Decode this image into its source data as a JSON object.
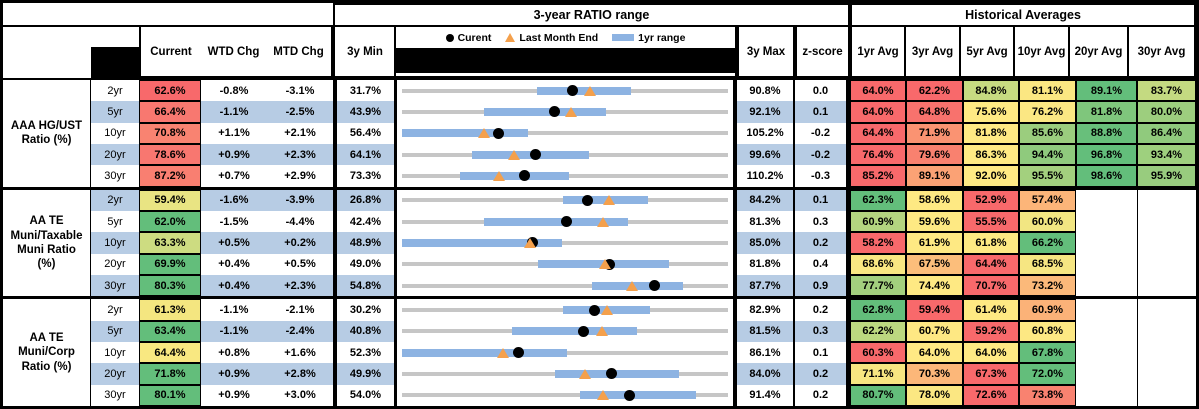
{
  "titles": {
    "mid": "3-year RATIO range",
    "right": "Historical Averages"
  },
  "legend": {
    "current": "Curent",
    "last_month": "Last Month End",
    "range": "1yr range"
  },
  "headers": {
    "current": "Current",
    "wtd": "WTD Chg",
    "mtd": "MTD Chg",
    "min": "3y Min",
    "max": "3y Max",
    "zscore": "z-score",
    "avgs": [
      "1yr Avg",
      "3yr Avg",
      "5yr Avg",
      "10yr Avg",
      "20yr Avg",
      "30yr Avg"
    ]
  },
  "colors": {
    "band": "#B7CCE4",
    "bar_1yr": "#8DB3E2",
    "line_3yr": "#C6C6C6",
    "triangle": "#F4A04C",
    "dot": "#000000",
    "scale_red": "#F8696B",
    "scale_yellow": "#FFEB84",
    "scale_green": "#63BE7B"
  },
  "groups": [
    {
      "label": "AAA HG/UST\nRatio (%)",
      "rows": [
        {
          "tenor": "2yr",
          "current": "62.6%",
          "current_bg": "#F8696B",
          "wtd": "-0.8%",
          "mtd": "-3.1%",
          "min": "31.7%",
          "max": "90.8%",
          "z": "0.0",
          "chart": {
            "min": 31.7,
            "max": 90.8,
            "lo": 56.2,
            "hi": 73.3,
            "cur": 62.6,
            "lme": 65.7
          },
          "avgs": [
            {
              "v": "64.0%",
              "bg": "#F8696B"
            },
            {
              "v": "62.2%",
              "bg": "#F8696B"
            },
            {
              "v": "84.8%",
              "bg": "#C7DB81"
            },
            {
              "v": "81.1%",
              "bg": "#FBE782"
            },
            {
              "v": "89.1%",
              "bg": "#63BE7B"
            },
            {
              "v": "83.7%",
              "bg": "#C4DA81"
            }
          ]
        },
        {
          "tenor": "5yr",
          "current": "66.4%",
          "current_bg": "#F87870",
          "wtd": "-1.1%",
          "mtd": "-2.5%",
          "min": "43.9%",
          "max": "92.1%",
          "z": "0.1",
          "chart": {
            "min": 43.9,
            "max": 92.1,
            "lo": 56.0,
            "hi": 74.1,
            "cur": 66.4,
            "lme": 68.9
          },
          "avgs": [
            {
              "v": "64.0%",
              "bg": "#F8696B"
            },
            {
              "v": "64.8%",
              "bg": "#F8726D"
            },
            {
              "v": "75.6%",
              "bg": "#FFEA84"
            },
            {
              "v": "76.2%",
              "bg": "#FBE783"
            },
            {
              "v": "81.8%",
              "bg": "#7FC67C"
            },
            {
              "v": "80.0%",
              "bg": "#9DCE7E"
            }
          ]
        },
        {
          "tenor": "10yr",
          "current": "70.8%",
          "current_bg": "#F98371",
          "wtd": "+1.1%",
          "mtd": "+2.1%",
          "min": "56.4%",
          "max": "105.2%",
          "z": "-0.2",
          "chart": {
            "min": 56.4,
            "max": 105.2,
            "lo": 56.4,
            "hi": 75.3,
            "cur": 70.8,
            "lme": 68.7
          },
          "avgs": [
            {
              "v": "64.4%",
              "bg": "#F8696B"
            },
            {
              "v": "71.9%",
              "bg": "#FA9372"
            },
            {
              "v": "81.8%",
              "bg": "#FFEA84"
            },
            {
              "v": "85.6%",
              "bg": "#9BCD7E"
            },
            {
              "v": "88.8%",
              "bg": "#68BF7B"
            },
            {
              "v": "86.4%",
              "bg": "#90CA7D"
            }
          ]
        },
        {
          "tenor": "20yr",
          "current": "78.6%",
          "current_bg": "#F87770",
          "wtd": "+0.9%",
          "mtd": "+2.3%",
          "min": "64.1%",
          "max": "99.6%",
          "z": "-0.2",
          "chart": {
            "min": 64.1,
            "max": 99.6,
            "lo": 71.7,
            "hi": 84.5,
            "cur": 78.6,
            "lme": 76.3
          },
          "avgs": [
            {
              "v": "76.4%",
              "bg": "#F8696B"
            },
            {
              "v": "79.6%",
              "bg": "#F9816F"
            },
            {
              "v": "86.3%",
              "bg": "#FFEA84"
            },
            {
              "v": "94.4%",
              "bg": "#8FCA7D"
            },
            {
              "v": "96.8%",
              "bg": "#63BE7B"
            },
            {
              "v": "93.4%",
              "bg": "#9ED07E"
            }
          ]
        },
        {
          "tenor": "30yr",
          "current": "87.2%",
          "current_bg": "#F97F71",
          "wtd": "+0.7%",
          "mtd": "+2.9%",
          "min": "73.3%",
          "max": "110.2%",
          "z": "-0.3",
          "chart": {
            "min": 73.3,
            "max": 110.2,
            "lo": 79.9,
            "hi": 92.2,
            "cur": 87.2,
            "lme": 84.3
          },
          "avgs": [
            {
              "v": "85.2%",
              "bg": "#F8696B"
            },
            {
              "v": "89.1%",
              "bg": "#FBA275"
            },
            {
              "v": "92.0%",
              "bg": "#FFEA84"
            },
            {
              "v": "95.5%",
              "bg": "#A3D07E"
            },
            {
              "v": "98.6%",
              "bg": "#63BE7B"
            },
            {
              "v": "95.9%",
              "bg": "#98CC7E"
            }
          ]
        }
      ]
    },
    {
      "label": "AA TE\nMuni/Taxable\nMuni Ratio\n(%)",
      "rows": [
        {
          "tenor": "2yr",
          "current": "59.4%",
          "current_bg": "#E9E483",
          "wtd": "-1.6%",
          "mtd": "-3.9%",
          "min": "26.8%",
          "max": "84.2%",
          "z": "0.1",
          "chart": {
            "min": 26.8,
            "max": 84.2,
            "lo": 55.1,
            "hi": 70.2,
            "cur": 59.4,
            "lme": 63.3
          },
          "avgs": [
            {
              "v": "62.3%",
              "bg": "#63BE7B"
            },
            {
              "v": "58.6%",
              "bg": "#FEE983"
            },
            {
              "v": "52.9%",
              "bg": "#F8696B"
            },
            {
              "v": "57.4%",
              "bg": "#FCB579"
            },
            {
              "v": "",
              "bg": ""
            },
            {
              "v": "",
              "bg": ""
            }
          ]
        },
        {
          "tenor": "5yr",
          "current": "62.0%",
          "current_bg": "#63BE7B",
          "wtd": "-1.5%",
          "mtd": "-4.4%",
          "min": "42.4%",
          "max": "81.3%",
          "z": "0.3",
          "chart": {
            "min": 42.4,
            "max": 81.3,
            "lo": 52.2,
            "hi": 69.4,
            "cur": 62.0,
            "lme": 66.4
          },
          "avgs": [
            {
              "v": "60.9%",
              "bg": "#B4D580"
            },
            {
              "v": "59.6%",
              "bg": "#FEE983"
            },
            {
              "v": "55.5%",
              "bg": "#F8696B"
            },
            {
              "v": "60.0%",
              "bg": "#F2E682"
            },
            {
              "v": "",
              "bg": ""
            },
            {
              "v": "",
              "bg": ""
            }
          ]
        },
        {
          "tenor": "10yr",
          "current": "63.3%",
          "current_bg": "#CDDC81",
          "wtd": "+0.5%",
          "mtd": "+0.2%",
          "min": "48.9%",
          "max": "85.0%",
          "z": "0.2",
          "chart": {
            "min": 48.9,
            "max": 85.0,
            "lo": 48.9,
            "hi": 66.6,
            "cur": 63.3,
            "lme": 63.1
          },
          "avgs": [
            {
              "v": "58.2%",
              "bg": "#F8696B"
            },
            {
              "v": "61.9%",
              "bg": "#FEE983"
            },
            {
              "v": "61.8%",
              "bg": "#FDE983"
            },
            {
              "v": "66.2%",
              "bg": "#63BE7B"
            },
            {
              "v": "",
              "bg": ""
            },
            {
              "v": "",
              "bg": ""
            }
          ]
        },
        {
          "tenor": "20yr",
          "current": "69.9%",
          "current_bg": "#63BE7B",
          "wtd": "+0.4%",
          "mtd": "+0.5%",
          "min": "49.0%",
          "max": "81.8%",
          "z": "0.4",
          "chart": {
            "min": 49.0,
            "max": 81.8,
            "lo": 62.7,
            "hi": 75.9,
            "cur": 69.9,
            "lme": 69.4
          },
          "avgs": [
            {
              "v": "68.6%",
              "bg": "#F9E782"
            },
            {
              "v": "67.5%",
              "bg": "#FCBE7B"
            },
            {
              "v": "64.4%",
              "bg": "#F8696B"
            },
            {
              "v": "68.5%",
              "bg": "#F6E682"
            },
            {
              "v": "",
              "bg": ""
            },
            {
              "v": "",
              "bg": ""
            }
          ]
        },
        {
          "tenor": "30yr",
          "current": "80.3%",
          "current_bg": "#63BE7B",
          "wtd": "+0.4%",
          "mtd": "+2.3%",
          "min": "54.8%",
          "max": "87.7%",
          "z": "0.9",
          "chart": {
            "min": 54.8,
            "max": 87.7,
            "lo": 74.0,
            "hi": 83.2,
            "cur": 80.3,
            "lme": 78.0
          },
          "avgs": [
            {
              "v": "77.7%",
              "bg": "#A3D07E"
            },
            {
              "v": "74.4%",
              "bg": "#FEE983"
            },
            {
              "v": "70.7%",
              "bg": "#F8696B"
            },
            {
              "v": "73.2%",
              "bg": "#FBB97A"
            },
            {
              "v": "",
              "bg": ""
            },
            {
              "v": "",
              "bg": ""
            }
          ]
        }
      ]
    },
    {
      "label": "AA TE\nMuni/Corp\nRatio (%)",
      "rows": [
        {
          "tenor": "2yr",
          "current": "61.3%",
          "current_bg": "#F4E680",
          "wtd": "-1.1%",
          "mtd": "-2.1%",
          "min": "30.2%",
          "max": "82.9%",
          "z": "0.2",
          "chart": {
            "min": 30.2,
            "max": 82.9,
            "lo": 56.2,
            "hi": 70.3,
            "cur": 61.3,
            "lme": 63.4
          },
          "avgs": [
            {
              "v": "62.8%",
              "bg": "#63BE7B"
            },
            {
              "v": "59.4%",
              "bg": "#F8696B"
            },
            {
              "v": "61.4%",
              "bg": "#FEE983"
            },
            {
              "v": "60.9%",
              "bg": "#FBB278"
            },
            {
              "v": "",
              "bg": ""
            },
            {
              "v": "",
              "bg": ""
            }
          ]
        },
        {
          "tenor": "5yr",
          "current": "63.4%",
          "current_bg": "#63BE7B",
          "wtd": "-1.1%",
          "mtd": "-2.4%",
          "min": "40.8%",
          "max": "81.5%",
          "z": "0.3",
          "chart": {
            "min": 40.8,
            "max": 81.5,
            "lo": 54.5,
            "hi": 70.2,
            "cur": 63.4,
            "lme": 65.8
          },
          "avgs": [
            {
              "v": "62.2%",
              "bg": "#BCD880"
            },
            {
              "v": "60.7%",
              "bg": "#FEE883"
            },
            {
              "v": "59.2%",
              "bg": "#F8696B"
            },
            {
              "v": "60.8%",
              "bg": "#FDE883"
            },
            {
              "v": "",
              "bg": ""
            },
            {
              "v": "",
              "bg": ""
            }
          ]
        },
        {
          "tenor": "10yr",
          "current": "64.4%",
          "current_bg": "#F9E881",
          "wtd": "+0.8%",
          "mtd": "+1.6%",
          "min": "52.3%",
          "max": "86.1%",
          "z": "0.1",
          "chart": {
            "min": 52.3,
            "max": 86.1,
            "lo": 52.3,
            "hi": 69.4,
            "cur": 64.4,
            "lme": 62.8
          },
          "avgs": [
            {
              "v": "60.3%",
              "bg": "#F8696B"
            },
            {
              "v": "64.0%",
              "bg": "#FFE984"
            },
            {
              "v": "64.0%",
              "bg": "#FFE984"
            },
            {
              "v": "67.8%",
              "bg": "#63BE7B"
            },
            {
              "v": "",
              "bg": ""
            },
            {
              "v": "",
              "bg": ""
            }
          ]
        },
        {
          "tenor": "20yr",
          "current": "71.8%",
          "current_bg": "#63BE7B",
          "wtd": "+0.9%",
          "mtd": "+2.8%",
          "min": "49.9%",
          "max": "84.0%",
          "z": "0.2",
          "chart": {
            "min": 49.9,
            "max": 84.0,
            "lo": 65.9,
            "hi": 78.9,
            "cur": 71.8,
            "lme": 69.0
          },
          "avgs": [
            {
              "v": "71.1%",
              "bg": "#F7E681"
            },
            {
              "v": "70.3%",
              "bg": "#FCB779"
            },
            {
              "v": "67.3%",
              "bg": "#F8696B"
            },
            {
              "v": "72.0%",
              "bg": "#63BE7B"
            },
            {
              "v": "",
              "bg": ""
            },
            {
              "v": "",
              "bg": ""
            }
          ]
        },
        {
          "tenor": "30yr",
          "current": "80.1%",
          "current_bg": "#63BE7B",
          "wtd": "+0.9%",
          "mtd": "+3.0%",
          "min": "54.0%",
          "max": "91.4%",
          "z": "0.2",
          "chart": {
            "min": 54.0,
            "max": 91.4,
            "lo": 74.4,
            "hi": 87.7,
            "cur": 80.1,
            "lme": 77.1
          },
          "avgs": [
            {
              "v": "80.7%",
              "bg": "#63BE7B"
            },
            {
              "v": "78.0%",
              "bg": "#FBE782"
            },
            {
              "v": "72.6%",
              "bg": "#F8696B"
            },
            {
              "v": "73.8%",
              "bg": "#F98270"
            },
            {
              "v": "",
              "bg": ""
            },
            {
              "v": "",
              "bg": ""
            }
          ]
        }
      ]
    }
  ],
  "chart_data": {
    "type": "table",
    "title": "3-year RATIO range",
    "legend_entries": [
      "Curent",
      "Last Month End",
      "1yr range"
    ],
    "range_charts": [
      {
        "group": "AAA HG/UST Ratio (%)",
        "tenor": "2yr",
        "min_3y": 31.7,
        "max_3y": 90.8,
        "range_1yr": [
          56.2,
          73.3
        ],
        "current": 62.6,
        "last_month_end": 65.7
      },
      {
        "group": "AAA HG/UST Ratio (%)",
        "tenor": "5yr",
        "min_3y": 43.9,
        "max_3y": 92.1,
        "range_1yr": [
          56.0,
          74.1
        ],
        "current": 66.4,
        "last_month_end": 68.9
      },
      {
        "group": "AAA HG/UST Ratio (%)",
        "tenor": "10yr",
        "min_3y": 56.4,
        "max_3y": 105.2,
        "range_1yr": [
          56.4,
          75.3
        ],
        "current": 70.8,
        "last_month_end": 68.7
      },
      {
        "group": "AAA HG/UST Ratio (%)",
        "tenor": "20yr",
        "min_3y": 64.1,
        "max_3y": 99.6,
        "range_1yr": [
          71.7,
          84.5
        ],
        "current": 78.6,
        "last_month_end": 76.3
      },
      {
        "group": "AAA HG/UST Ratio (%)",
        "tenor": "30yr",
        "min_3y": 73.3,
        "max_3y": 110.2,
        "range_1yr": [
          79.9,
          92.2
        ],
        "current": 87.2,
        "last_month_end": 84.3
      },
      {
        "group": "AA TE Muni/Taxable Muni Ratio (%)",
        "tenor": "2yr",
        "min_3y": 26.8,
        "max_3y": 84.2,
        "range_1yr": [
          55.1,
          70.2
        ],
        "current": 59.4,
        "last_month_end": 63.3
      },
      {
        "group": "AA TE Muni/Taxable Muni Ratio (%)",
        "tenor": "5yr",
        "min_3y": 42.4,
        "max_3y": 81.3,
        "range_1yr": [
          52.2,
          69.4
        ],
        "current": 62.0,
        "last_month_end": 66.4
      },
      {
        "group": "AA TE Muni/Taxable Muni Ratio (%)",
        "tenor": "10yr",
        "min_3y": 48.9,
        "max_3y": 85.0,
        "range_1yr": [
          48.9,
          66.6
        ],
        "current": 63.3,
        "last_month_end": 63.1
      },
      {
        "group": "AA TE Muni/Taxable Muni Ratio (%)",
        "tenor": "20yr",
        "min_3y": 49.0,
        "max_3y": 81.8,
        "range_1yr": [
          62.7,
          75.9
        ],
        "current": 69.9,
        "last_month_end": 69.4
      },
      {
        "group": "AA TE Muni/Taxable Muni Ratio (%)",
        "tenor": "30yr",
        "min_3y": 54.8,
        "max_3y": 87.7,
        "range_1yr": [
          74.0,
          83.2
        ],
        "current": 80.3,
        "last_month_end": 78.0
      },
      {
        "group": "AA TE Muni/Corp Ratio (%)",
        "tenor": "2yr",
        "min_3y": 30.2,
        "max_3y": 82.9,
        "range_1yr": [
          56.2,
          70.3
        ],
        "current": 61.3,
        "last_month_end": 63.4
      },
      {
        "group": "AA TE Muni/Corp Ratio (%)",
        "tenor": "5yr",
        "min_3y": 40.8,
        "max_3y": 81.5,
        "range_1yr": [
          54.5,
          70.2
        ],
        "current": 63.4,
        "last_month_end": 65.8
      },
      {
        "group": "AA TE Muni/Corp Ratio (%)",
        "tenor": "10yr",
        "min_3y": 52.3,
        "max_3y": 86.1,
        "range_1yr": [
          52.3,
          69.4
        ],
        "current": 64.4,
        "last_month_end": 62.8
      },
      {
        "group": "AA TE Muni/Corp Ratio (%)",
        "tenor": "20yr",
        "min_3y": 49.9,
        "max_3y": 84.0,
        "range_1yr": [
          65.9,
          78.9
        ],
        "current": 71.8,
        "last_month_end": 69.0
      },
      {
        "group": "AA TE Muni/Corp Ratio (%)",
        "tenor": "30yr",
        "min_3y": 54.0,
        "max_3y": 91.4,
        "range_1yr": [
          74.4,
          87.7
        ],
        "current": 80.1,
        "last_month_end": 77.1
      }
    ]
  }
}
